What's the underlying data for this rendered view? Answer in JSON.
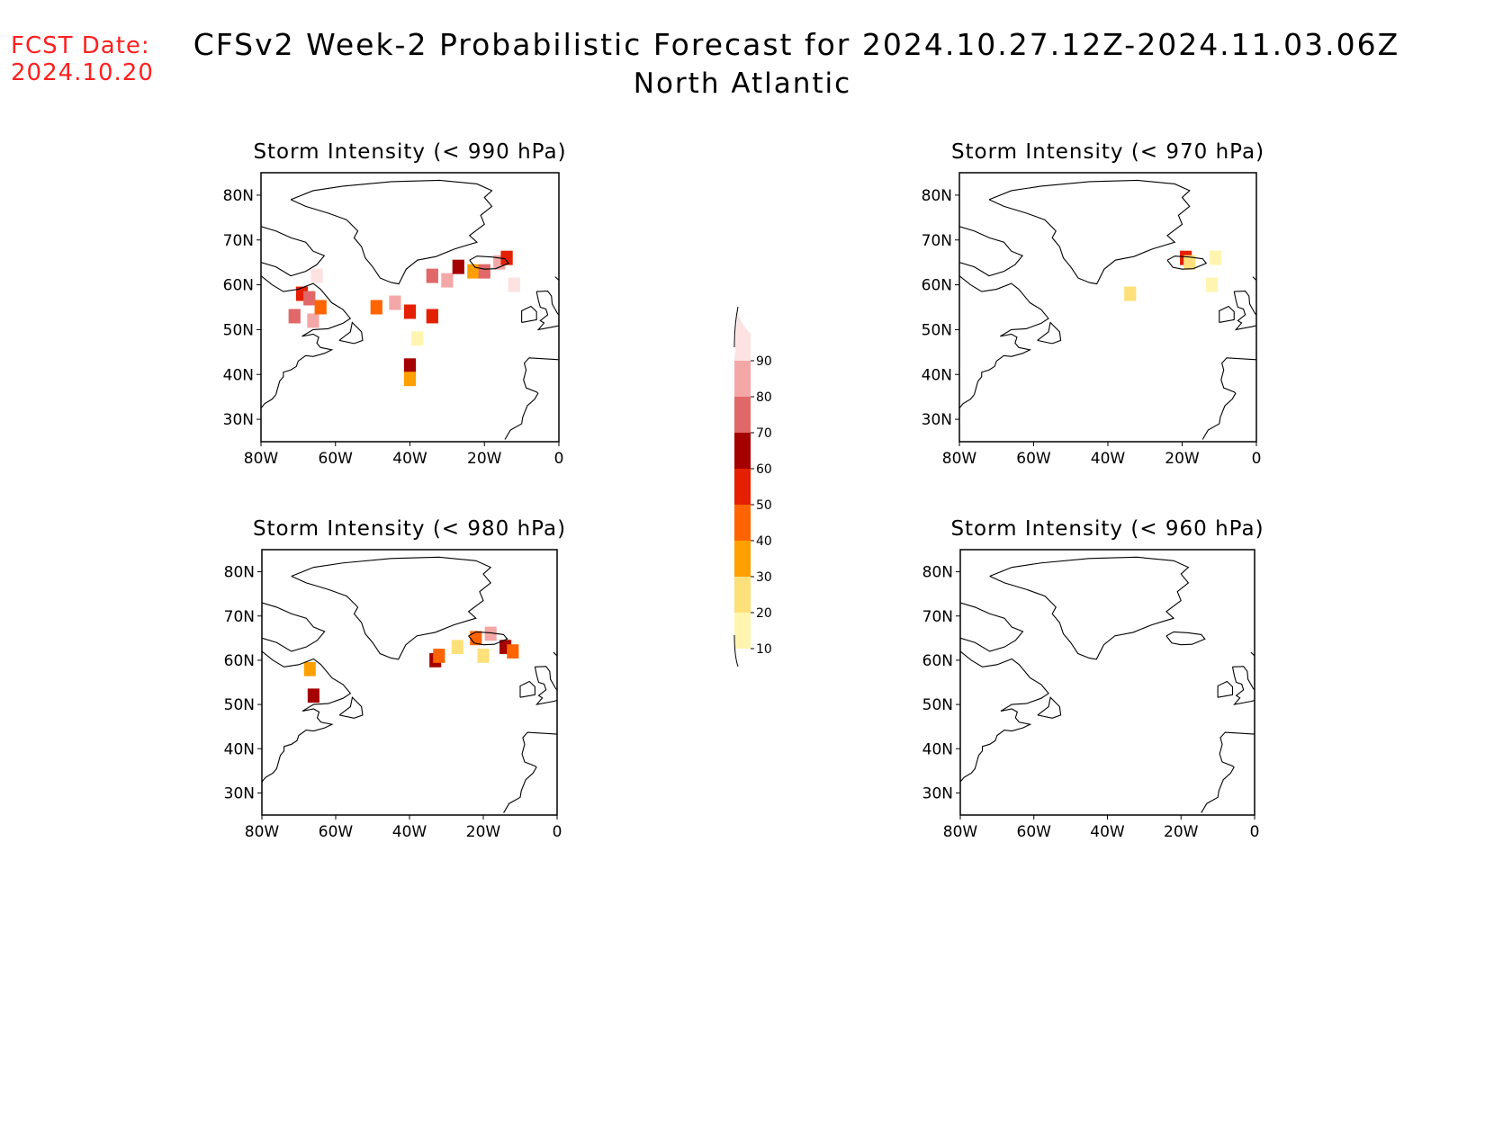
{
  "header": {
    "fcst_label": "FCST Date:",
    "fcst_date": "2024.10.20",
    "title": "CFSv2 Week-2 Probabilistic Forecast for 2024.10.27.12Z-2024.11.03.06Z",
    "subtitle": "North Atlantic"
  },
  "axes": {
    "lon_ticks": [
      "80W",
      "60W",
      "40W",
      "20W",
      "0"
    ],
    "lat_ticks": [
      "80N",
      "70N",
      "60N",
      "50N",
      "40N",
      "30N"
    ]
  },
  "panels": [
    {
      "title": "Storm Intensity (< 990 hPa)"
    },
    {
      "title": "Storm Intensity (< 970 hPa)"
    },
    {
      "title": "Storm Intensity (< 980 hPa)"
    },
    {
      "title": "Storm Intensity (< 960 hPa)"
    }
  ],
  "colorbar": {
    "labels": [
      "10",
      "20",
      "30",
      "40",
      "50",
      "60",
      "70",
      "80",
      "90"
    ],
    "colors": [
      "#fff5b0",
      "#fde07a",
      "#ffa000",
      "#ff6400",
      "#e42000",
      "#a50000",
      "#e06868",
      "#f4a7a7",
      "#fde2e2"
    ]
  },
  "chart_data": {
    "type": "heatmap",
    "units": "probability (%)",
    "bins": [
      10,
      20,
      30,
      40,
      50,
      60,
      70,
      80,
      90
    ],
    "lon_range": [
      -80,
      0
    ],
    "lat_range": [
      25,
      85
    ],
    "panels": [
      {
        "threshold_hPa": 990,
        "cells": [
          [
            -65,
            62,
            90
          ],
          [
            -69,
            58,
            50
          ],
          [
            -67,
            57,
            70
          ],
          [
            -71,
            53,
            70
          ],
          [
            -66,
            52,
            80
          ],
          [
            -64,
            55,
            40
          ],
          [
            -49,
            55,
            40
          ],
          [
            -44,
            56,
            80
          ],
          [
            -40,
            54,
            50
          ],
          [
            -34,
            62,
            70
          ],
          [
            -30,
            61,
            80
          ],
          [
            -27,
            64,
            60
          ],
          [
            -23,
            63,
            30
          ],
          [
            -20,
            63,
            70
          ],
          [
            -16,
            65,
            80
          ],
          [
            -14,
            66,
            50
          ],
          [
            -12,
            60,
            90
          ],
          [
            -40,
            42,
            60
          ],
          [
            -40,
            39,
            30
          ],
          [
            -38,
            48,
            10
          ],
          [
            -34,
            53,
            50
          ]
        ]
      },
      {
        "threshold_hPa": 970,
        "cells": [
          [
            -34,
            58,
            20
          ],
          [
            -19,
            66,
            50
          ],
          [
            -18,
            65,
            20
          ],
          [
            -12,
            60,
            10
          ],
          [
            -11,
            66,
            10
          ]
        ]
      },
      {
        "threshold_hPa": 980,
        "cells": [
          [
            -67,
            58,
            30
          ],
          [
            -66,
            52,
            60
          ],
          [
            -33,
            60,
            60
          ],
          [
            -32,
            61,
            40
          ],
          [
            -27,
            63,
            20
          ],
          [
            -22,
            65,
            40
          ],
          [
            -18,
            66,
            80
          ],
          [
            -14,
            63,
            60
          ],
          [
            -12,
            62,
            40
          ],
          [
            -20,
            61,
            20
          ]
        ]
      },
      {
        "threshold_hPa": 960,
        "cells": []
      }
    ]
  }
}
